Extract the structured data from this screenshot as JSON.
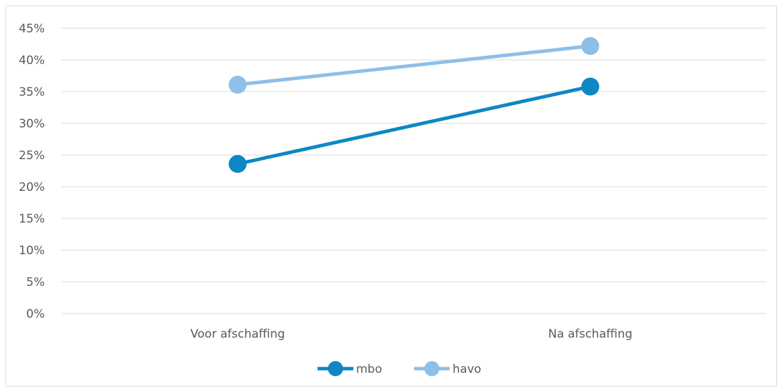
{
  "chart_data": {
    "type": "line",
    "title": "",
    "xlabel": "",
    "ylabel": "",
    "categories": [
      "Voor afschaffing",
      "Na afschaffing"
    ],
    "series": [
      {
        "name": "mbo",
        "values": [
          23.6,
          35.8
        ],
        "color": "#0e87c4"
      },
      {
        "name": "havo",
        "values": [
          36.1,
          42.2
        ],
        "color": "#8ebfe8"
      }
    ],
    "ylim": [
      0,
      45
    ],
    "yticks": [
      "0%",
      "5%",
      "10%",
      "15%",
      "20%",
      "25%",
      "30%",
      "35%",
      "40%",
      "45%"
    ],
    "grid": true,
    "legend": "bottom-center",
    "gridline_color": "#d9d9d9",
    "axis_text_color": "#595959"
  }
}
